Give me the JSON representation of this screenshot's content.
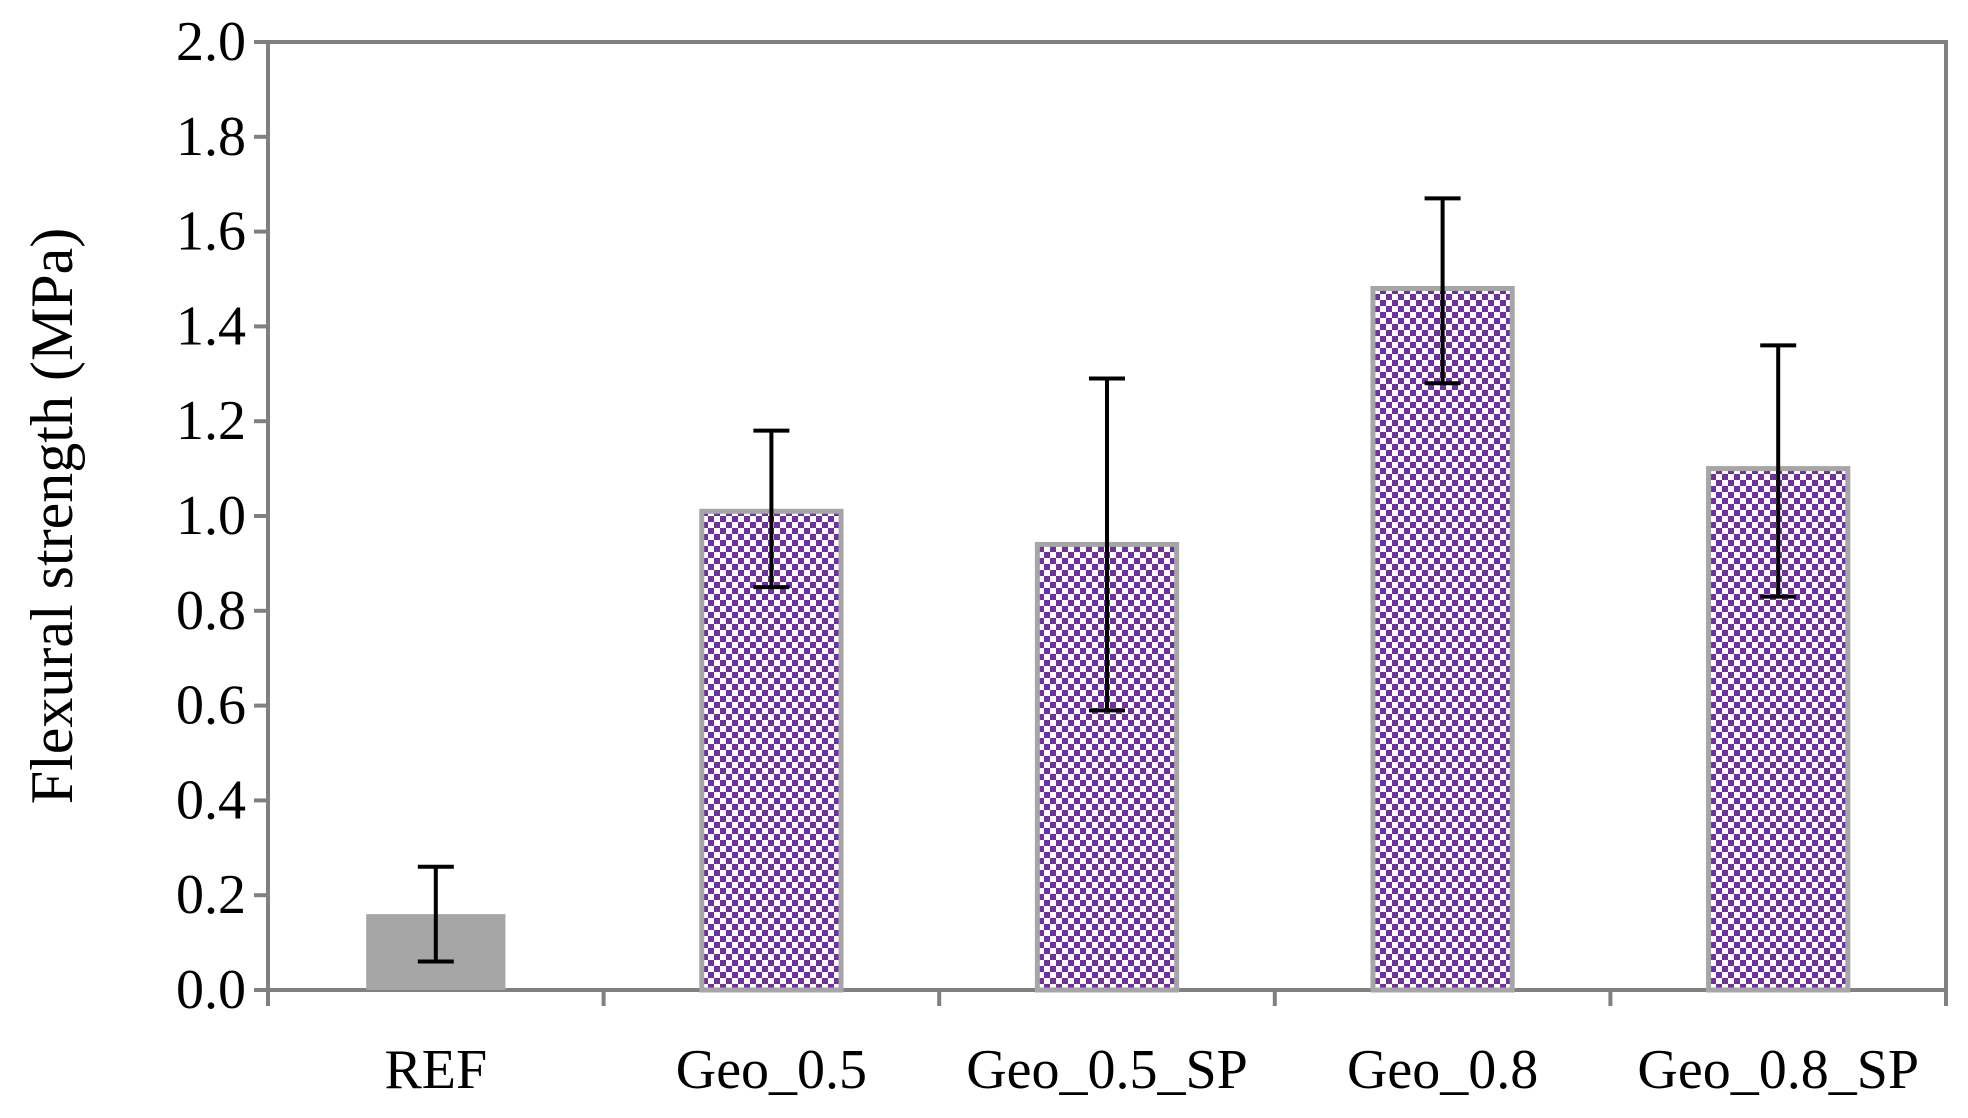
{
  "chart_data": {
    "type": "bar",
    "title": "",
    "xlabel": "",
    "ylabel": "Flexural strength (MPa)",
    "ylim": [
      0.0,
      2.0
    ],
    "ytick_step": 0.2,
    "ytick_labels": [
      "0.0",
      "0.2",
      "0.4",
      "0.6",
      "0.8",
      "1.0",
      "1.2",
      "1.4",
      "1.6",
      "1.8",
      "2.0"
    ],
    "grid": false,
    "legend": "none",
    "categories": [
      "REF",
      "Geo_0.5",
      "Geo_0.5_SP",
      "Geo_0.8",
      "Geo_0.8_SP"
    ],
    "values": [
      0.16,
      1.01,
      0.94,
      1.48,
      1.1
    ],
    "error_low": [
      0.06,
      0.85,
      0.59,
      1.28,
      0.83
    ],
    "error_high": [
      0.26,
      1.18,
      1.29,
      1.67,
      1.36
    ],
    "fills": [
      "solid-gray",
      "checker-purple",
      "checker-purple",
      "checker-purple",
      "checker-purple"
    ],
    "colors": {
      "ref_fill": "#a6a6a6",
      "pattern_primary": "#7030a0",
      "pattern_secondary": "#ffffff",
      "bar_border": "#a6a6a6",
      "axis": "#808080",
      "error_bar": "#000000"
    }
  }
}
